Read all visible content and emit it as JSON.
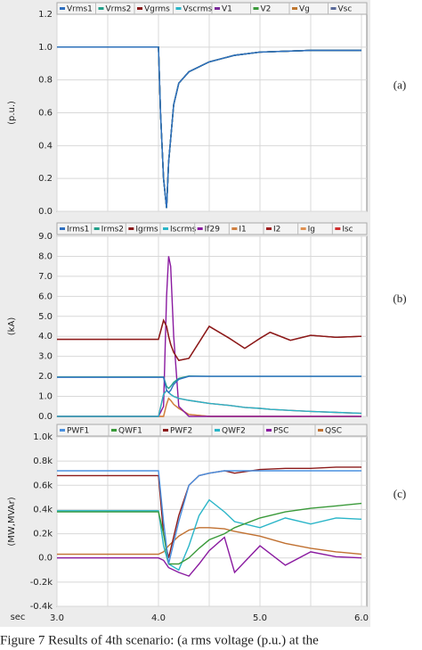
{
  "caption": "Figure 7 Results of 4th scenario: (a rms voltage (p.u.) at the",
  "chart_data": [
    {
      "type": "line",
      "panel_label": "(a)",
      "ylabel": "(p.u.)",
      "ylim": [
        0,
        1.2
      ],
      "yticks": [
        {
          "value": 0,
          "label": "0.0"
        },
        0.2,
        0.4,
        0.6,
        0.8,
        {
          "value": 1,
          "label": "1.0"
        },
        1.2
      ],
      "xlim": [
        3,
        6
      ],
      "xticks": [
        3,
        3.5,
        4,
        4.5,
        5,
        5.5,
        6
      ],
      "grid": true,
      "x": [
        3.0,
        4.0,
        4.02,
        4.05,
        4.08,
        4.1,
        4.15,
        4.2,
        4.3,
        4.5,
        4.75,
        5.0,
        5.5,
        6.0
      ],
      "series": [
        {
          "name": "Vrms1",
          "color": "#2e6fc0",
          "values": [
            1,
            1,
            0.6,
            0.2,
            0.02,
            0.3,
            0.65,
            0.78,
            0.85,
            0.91,
            0.95,
            0.97,
            0.98,
            0.98
          ]
        },
        {
          "name": "Vrms2",
          "color": "#22a08a",
          "values": [
            1,
            1,
            0.6,
            0.2,
            0.02,
            0.3,
            0.65,
            0.78,
            0.85,
            0.91,
            0.95,
            0.97,
            0.98,
            0.98
          ]
        },
        {
          "name": "Vgrms",
          "color": "#8b1a1a",
          "values": [
            1,
            1,
            0.6,
            0.2,
            0.02,
            0.3,
            0.65,
            0.78,
            0.85,
            0.91,
            0.95,
            0.97,
            0.98,
            0.98
          ]
        },
        {
          "name": "Vscrms",
          "color": "#2ab5c8",
          "values": [
            1,
            1,
            0.6,
            0.2,
            0.02,
            0.3,
            0.65,
            0.78,
            0.85,
            0.91,
            0.95,
            0.97,
            0.98,
            0.98
          ]
        },
        {
          "name": "V1",
          "color": "#7a2a9a",
          "values": [
            1,
            1,
            0.6,
            0.2,
            0.02,
            0.3,
            0.65,
            0.78,
            0.85,
            0.91,
            0.95,
            0.97,
            0.98,
            0.98
          ]
        },
        {
          "name": "V2",
          "color": "#3a9a3a",
          "values": [
            1,
            1,
            0.6,
            0.2,
            0.02,
            0.3,
            0.65,
            0.78,
            0.85,
            0.91,
            0.95,
            0.97,
            0.98,
            0.98
          ]
        },
        {
          "name": "Vg",
          "color": "#c07830",
          "values": [
            1,
            1,
            0.6,
            0.2,
            0.02,
            0.3,
            0.65,
            0.78,
            0.85,
            0.91,
            0.95,
            0.97,
            0.98,
            0.98
          ]
        },
        {
          "name": "Vsc",
          "color": "#5a6a9a",
          "values": [
            1,
            1,
            0.6,
            0.2,
            0.02,
            0.3,
            0.65,
            0.78,
            0.85,
            0.91,
            0.95,
            0.97,
            0.98,
            0.98
          ]
        }
      ]
    },
    {
      "type": "line",
      "panel_label": "(b)",
      "ylabel": "(kA)",
      "ylim": [
        0,
        9
      ],
      "yticks": [
        {
          "value": 0,
          "label": "0.0"
        },
        {
          "value": 1,
          "label": "1.0"
        },
        {
          "value": 2,
          "label": "2.0"
        },
        {
          "value": 3,
          "label": "3.0"
        },
        {
          "value": 4,
          "label": "4.0"
        },
        {
          "value": 5,
          "label": "5.0"
        },
        {
          "value": 6,
          "label": "6.0"
        },
        {
          "value": 7,
          "label": "7.0"
        },
        {
          "value": 8,
          "label": "8.0"
        },
        {
          "value": 9,
          "label": "9.0"
        }
      ],
      "xlim": [
        3,
        6
      ],
      "xticks": [
        3,
        3.5,
        4,
        4.5,
        5,
        5.5,
        6
      ],
      "grid": true,
      "x": [
        3.0,
        4.0,
        4.05,
        4.08,
        4.1,
        4.12,
        4.15,
        4.2,
        4.3,
        4.5,
        4.7,
        4.85,
        5.0,
        5.1,
        5.3,
        5.5,
        5.75,
        6.0
      ],
      "series": [
        {
          "name": "Irms1",
          "color": "#2e6fc0",
          "values": [
            1.95,
            1.95,
            1.95,
            1.3,
            1.2,
            1.3,
            1.6,
            1.85,
            2.0,
            2.0,
            2.0,
            2.0,
            2.0,
            2.0,
            2.0,
            2.0,
            2.0,
            2.0
          ]
        },
        {
          "name": "Irms2",
          "color": "#22a08a",
          "values": [
            1.97,
            1.97,
            1.97,
            1.5,
            1.4,
            1.5,
            1.7,
            1.9,
            2.02,
            2.0,
            2.0,
            2.0,
            2.0,
            2.0,
            2.0,
            2.0,
            2.0,
            2.0
          ]
        },
        {
          "name": "Igrms",
          "color": "#8b1a1a",
          "values": [
            3.85,
            3.85,
            4.8,
            4.5,
            4.0,
            3.6,
            3.2,
            2.8,
            2.9,
            4.5,
            3.9,
            3.4,
            3.9,
            4.2,
            3.8,
            4.05,
            3.95,
            4.0
          ]
        },
        {
          "name": "Iscrms",
          "color": "#2ab5c8",
          "values": [
            0,
            0,
            1.1,
            1.3,
            1.2,
            1.1,
            1.0,
            0.9,
            0.8,
            0.65,
            0.55,
            0.45,
            0.4,
            0.35,
            0.3,
            0.25,
            0.2,
            0.15
          ]
        },
        {
          "name": "If29",
          "color": "#8a1aa0",
          "values": [
            0,
            0,
            0.5,
            6,
            8,
            7.5,
            4,
            0.5,
            0,
            0,
            0,
            0,
            0,
            0,
            0,
            0,
            0,
            0
          ]
        },
        {
          "name": "I1",
          "color": "#d08040",
          "values": [
            0,
            0,
            0,
            0.6,
            0.9,
            0.8,
            0.6,
            0.4,
            0.1,
            0,
            0,
            0,
            0,
            0,
            0,
            0,
            0,
            0
          ]
        },
        {
          "name": "I2",
          "color": "#a02020",
          "values": [
            3.85,
            3.85,
            4.8,
            4.5,
            4.0,
            3.6,
            3.2,
            2.8,
            2.9,
            4.5,
            3.9,
            3.4,
            3.9,
            4.2,
            3.8,
            4.05,
            3.95,
            4.0
          ]
        },
        {
          "name": "Ig",
          "color": "#e09050",
          "values": [
            0,
            0,
            0,
            0.6,
            0.9,
            0.8,
            0.6,
            0.4,
            0.1,
            0,
            0,
            0,
            0,
            0,
            0,
            0,
            0,
            0
          ]
        },
        {
          "name": "Isc",
          "color": "#d03030",
          "values": [
            0,
            0,
            1.1,
            1.3,
            1.2,
            1.1,
            1.0,
            0.9,
            0.8,
            0.65,
            0.55,
            0.45,
            0.4,
            0.35,
            0.3,
            0.25,
            0.2,
            0.15
          ]
        }
      ]
    },
    {
      "type": "line",
      "panel_label": "(c)",
      "ylabel": "(MW,MVAr)",
      "xlabel": "sec",
      "ylim": [
        -400,
        1000
      ],
      "yticks": [
        {
          "value": -400,
          "label": "-0.4k"
        },
        {
          "value": -200,
          "label": "-0.2k"
        },
        {
          "value": 0,
          "label": "0.0"
        },
        {
          "value": 200,
          "label": "0.2k"
        },
        {
          "value": 400,
          "label": "0.4k"
        },
        {
          "value": 600,
          "label": "0.6k"
        },
        {
          "value": 800,
          "label": "0.8k"
        },
        {
          "value": 1000,
          "label": "1.0k"
        }
      ],
      "xlim": [
        3,
        6
      ],
      "xticks": [
        {
          "value": 3,
          "label": "3.0"
        },
        3.5,
        {
          "value": 4,
          "label": "4.0"
        },
        4.5,
        {
          "value": 5,
          "label": "5.0"
        },
        5.5,
        {
          "value": 6,
          "label": "6.0"
        }
      ],
      "grid": true,
      "x": [
        3.0,
        4.0,
        4.05,
        4.1,
        4.2,
        4.3,
        4.4,
        4.5,
        4.65,
        4.75,
        5.0,
        5.25,
        5.5,
        5.75,
        6.0
      ],
      "series": [
        {
          "name": "PWF1",
          "color": "#4a90e0",
          "values": [
            720,
            720,
            300,
            -50,
            300,
            600,
            680,
            700,
            720,
            720,
            720,
            720,
            720,
            720,
            720
          ]
        },
        {
          "name": "QWF1",
          "color": "#3a9a3a",
          "values": [
            380,
            380,
            200,
            -50,
            -50,
            0,
            80,
            150,
            200,
            250,
            330,
            380,
            410,
            430,
            450
          ]
        },
        {
          "name": "PWF2",
          "color": "#8b1a1a",
          "values": [
            680,
            680,
            200,
            0,
            350,
            600,
            680,
            700,
            720,
            700,
            730,
            740,
            740,
            750,
            750
          ]
        },
        {
          "name": "QWF2",
          "color": "#2ab5c8",
          "values": [
            390,
            390,
            100,
            -50,
            -100,
            100,
            350,
            480,
            380,
            300,
            250,
            330,
            280,
            330,
            320
          ]
        },
        {
          "name": "PSC",
          "color": "#8a1aa0",
          "values": [
            0,
            0,
            -20,
            -80,
            -120,
            -150,
            -50,
            60,
            170,
            -120,
            100,
            -60,
            50,
            10,
            0
          ]
        },
        {
          "name": "QSC",
          "color": "#c07030",
          "values": [
            30,
            30,
            50,
            100,
            180,
            230,
            250,
            250,
            240,
            220,
            180,
            120,
            80,
            50,
            30
          ]
        }
      ]
    }
  ]
}
